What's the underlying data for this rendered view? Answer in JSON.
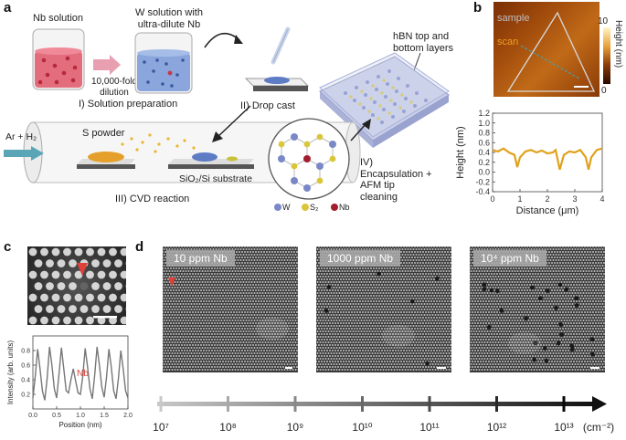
{
  "panel_labels": {
    "a": "a",
    "b": "b",
    "c": "c",
    "d": "d"
  },
  "panel_a": {
    "nb_solution": "Nb solution",
    "w_solution_line1": "W solution with",
    "w_solution_line2": "ultra-dilute Nb",
    "dilution_line1": "10,000-fold",
    "dilution_line2": "dilution",
    "step1": "I) Solution preparation",
    "step2": "II) Drop cast",
    "step3": "III) CVD reaction",
    "step4_line1": "IV)",
    "step4_line2": "Encapsulation +",
    "step4_line3": "AFM tip",
    "step4_line4": "cleaning",
    "hbn_line1": "hBN top and",
    "hbn_line2": "bottom layers",
    "gas": "Ar + H₂",
    "s_powder": "S powder",
    "substrate": "SiO₂/Si substrate",
    "legend_w": "W",
    "legend_s2": "S₂",
    "legend_nb": "Nb"
  },
  "panel_b": {
    "sample": "sample",
    "scan": "scan",
    "colorbar_max": "10",
    "colorbar_min": "0",
    "colorbar_label": "Height (nm)"
  },
  "panel_c": {
    "nb_marker": "Nb"
  },
  "panel_d": {
    "images": [
      {
        "label": "10 ppm Nb"
      },
      {
        "label": "1000 ppm Nb"
      },
      {
        "label": "10⁴ ppm Nb"
      }
    ],
    "scale_ticks": [
      "10⁷",
      "10⁸",
      "10⁹",
      "10¹⁰",
      "10¹¹",
      "10¹²",
      "10¹³"
    ],
    "unit": "(cm⁻²)"
  },
  "chart_data": [
    {
      "type": "line",
      "panel": "b",
      "xlabel": "Distance (μm)",
      "ylabel": "Height (nm)",
      "xlim": [
        0,
        4
      ],
      "ylim": [
        -0.4,
        1.2
      ],
      "xticks": [
        "0",
        "1",
        "2",
        "3",
        "4"
      ],
      "yticks": [
        "-0.4",
        "-0.2",
        "0.0",
        "0.2",
        "0.4",
        "0.6",
        "0.8",
        "1.0",
        "1.2"
      ],
      "color": "#e0a21d",
      "x": [
        0,
        0.2,
        0.4,
        0.6,
        0.8,
        0.9,
        1.0,
        1.2,
        1.4,
        1.6,
        1.8,
        2.0,
        2.2,
        2.3,
        2.45,
        2.6,
        2.8,
        3.0,
        3.2,
        3.4,
        3.5,
        3.6,
        3.8,
        4.0
      ],
      "y": [
        0.45,
        0.42,
        0.48,
        0.4,
        0.35,
        0.1,
        0.3,
        0.42,
        0.45,
        0.4,
        0.44,
        0.38,
        0.4,
        0.45,
        0.05,
        0.35,
        0.42,
        0.4,
        0.45,
        0.3,
        0.05,
        0.3,
        0.45,
        0.48
      ]
    },
    {
      "type": "line",
      "panel": "c",
      "xlabel": "Position (nm)",
      "ylabel": "Intensity (arb. units)",
      "xlim": [
        0,
        2
      ],
      "ylim": [
        0,
        1
      ],
      "xticks": [
        "0.0",
        "0.5",
        "1.0",
        "1.5",
        "2.0"
      ],
      "yticks": [
        "0.2",
        "0.4",
        "0.6",
        "0.8"
      ],
      "color": "#777777",
      "x": [
        0,
        0.05,
        0.1,
        0.15,
        0.2,
        0.25,
        0.3,
        0.35,
        0.4,
        0.45,
        0.5,
        0.55,
        0.6,
        0.65,
        0.7,
        0.75,
        0.8,
        0.85,
        0.9,
        0.95,
        1.0,
        1.05,
        1.1,
        1.15,
        1.2,
        1.25,
        1.3,
        1.35,
        1.4,
        1.45,
        1.5,
        1.55,
        1.6,
        1.65,
        1.7,
        1.75,
        1.8,
        1.85,
        1.9,
        1.95,
        2.0
      ],
      "y": [
        0.15,
        0.45,
        0.82,
        0.55,
        0.25,
        0.12,
        0.42,
        0.85,
        0.6,
        0.28,
        0.15,
        0.48,
        0.84,
        0.55,
        0.25,
        0.22,
        0.4,
        0.55,
        0.38,
        0.22,
        0.2,
        0.45,
        0.83,
        0.58,
        0.28,
        0.14,
        0.46,
        0.85,
        0.6,
        0.3,
        0.16,
        0.44,
        0.82,
        0.57,
        0.25,
        0.14,
        0.42,
        0.8,
        0.55,
        0.25,
        0.15
      ]
    }
  ]
}
